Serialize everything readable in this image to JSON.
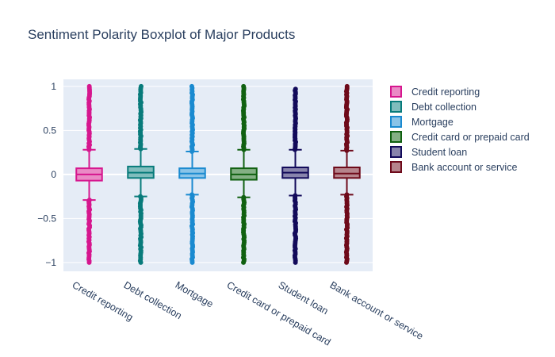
{
  "chart_data": {
    "type": "box",
    "title": "Sentiment Polarity Boxplot of Major Products",
    "xlabel": "",
    "ylabel": "",
    "ylim": [
      -1.1,
      1.08
    ],
    "y_ticks": [
      1,
      0.5,
      0,
      -0.5,
      -1
    ],
    "y_tick_labels": [
      "1",
      "0.5",
      "0",
      "−0.5",
      "−1"
    ],
    "grid": true,
    "legend_position": "top-right",
    "categories": [
      "Credit reporting",
      "Debt collection",
      "Mortgage",
      "Credit card or prepaid card",
      "Student loan",
      "Bank account or service"
    ],
    "series": [
      {
        "name": "Credit reporting",
        "color": "#d6168e",
        "fill": "#ea8ac5",
        "q1": -0.07,
        "median": 0.0,
        "q3": 0.07,
        "lowerfence": -0.29,
        "upperfence": 0.28,
        "outliers_low_range": [
          -1.0,
          -0.29
        ],
        "outliers_high_range": [
          0.28,
          1.0
        ]
      },
      {
        "name": "Debt collection",
        "color": "#087b7b",
        "fill": "#80bdbd",
        "q1": -0.04,
        "median": 0.02,
        "q3": 0.09,
        "lowerfence": -0.25,
        "upperfence": 0.29,
        "outliers_low_range": [
          -1.0,
          -0.25
        ],
        "outliers_high_range": [
          0.29,
          1.0
        ]
      },
      {
        "name": "Mortgage",
        "color": "#1a8ad0",
        "fill": "#8ac4e8",
        "q1": -0.04,
        "median": 0.01,
        "q3": 0.07,
        "lowerfence": -0.23,
        "upperfence": 0.26,
        "outliers_low_range": [
          -1.0,
          -0.23
        ],
        "outliers_high_range": [
          0.26,
          1.0
        ]
      },
      {
        "name": "Credit card or prepaid card",
        "color": "#106010",
        "fill": "#84b084",
        "q1": -0.06,
        "median": 0.0,
        "q3": 0.07,
        "lowerfence": -0.26,
        "upperfence": 0.28,
        "outliers_low_range": [
          -1.0,
          -0.26
        ],
        "outliers_high_range": [
          0.28,
          1.0
        ]
      },
      {
        "name": "Student loan",
        "color": "#120a5a",
        "fill": "#8884ac",
        "q1": -0.04,
        "median": 0.02,
        "q3": 0.08,
        "lowerfence": -0.24,
        "upperfence": 0.28,
        "outliers_low_range": [
          -1.0,
          -0.24
        ],
        "outliers_high_range": [
          0.28,
          0.97
        ]
      },
      {
        "name": "Bank account or service",
        "color": "#6e0a1a",
        "fill": "#b6848c",
        "q1": -0.04,
        "median": 0.01,
        "q3": 0.08,
        "lowerfence": -0.23,
        "upperfence": 0.27,
        "outliers_low_range": [
          -1.0,
          -0.23
        ],
        "outliers_high_range": [
          0.27,
          1.0
        ]
      }
    ]
  }
}
